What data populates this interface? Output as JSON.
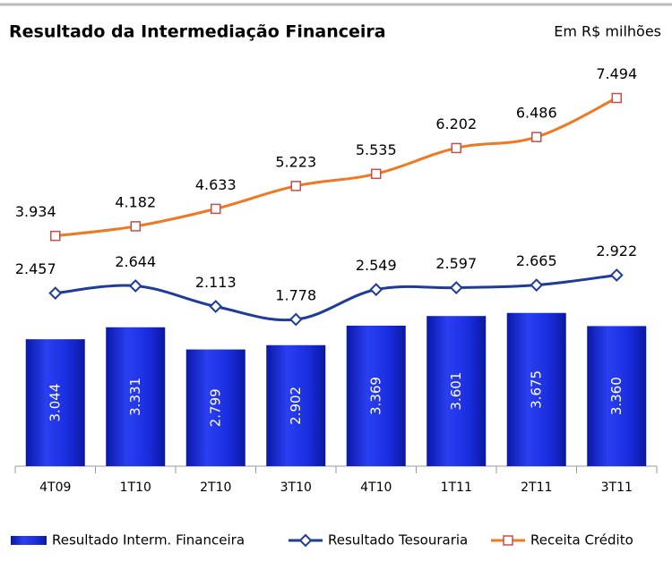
{
  "chart_data": {
    "type": "combo",
    "title": "Resultado da Intermediação Financeira",
    "subtitle": "Em R$ milhões",
    "categories": [
      "4T09",
      "1T10",
      "2T10",
      "3T10",
      "4T10",
      "1T11",
      "2T11",
      "3T11"
    ],
    "series": [
      {
        "name": "Resultado Interm. Financeira",
        "type": "bar",
        "color": "#1a2ee0",
        "values": [
          3044,
          3331,
          2799,
          2902,
          3369,
          3601,
          3675,
          3360
        ],
        "value_labels": [
          "3.044",
          "3.331",
          "2.799",
          "2.902",
          "3.369",
          "3.601",
          "3.675",
          "3.360"
        ]
      },
      {
        "name": "Resultado Tesouraria",
        "type": "line",
        "marker": "diamond",
        "color": "#1f3c99",
        "values": [
          2457,
          2644,
          2113,
          1778,
          2549,
          2597,
          2665,
          2922
        ],
        "value_labels": [
          "2.457",
          "2.644",
          "2.113",
          "1.778",
          "2.549",
          "2.597",
          "2.665",
          "2.922"
        ]
      },
      {
        "name": "Receita Crédito",
        "type": "line",
        "marker": "square",
        "color": "#f07820",
        "values": [
          3934,
          4182,
          4633,
          5223,
          5535,
          6202,
          6486,
          7494
        ],
        "value_labels": [
          "3.934",
          "4.182",
          "4.633",
          "5.223",
          "5.535",
          "6.202",
          "6.486",
          "7.494"
        ]
      }
    ],
    "legend": "bottom"
  }
}
